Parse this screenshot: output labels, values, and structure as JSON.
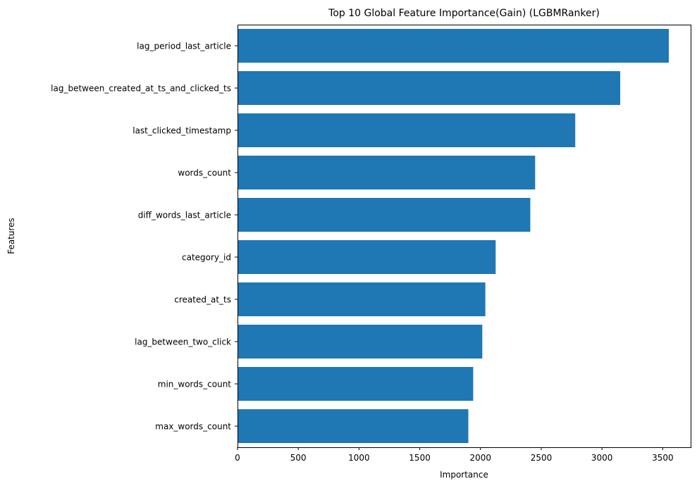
{
  "chart_data": {
    "type": "bar",
    "orientation": "horizontal",
    "title": "Top 10 Global Feature Importance(Gain) (LGBMRanker)",
    "xlabel": "Importance",
    "ylabel": "Features",
    "categories": [
      "lag_period_last_article",
      "lag_between_created_at_ts_and_clicked_ts",
      "last_clicked_timestamp",
      "words_count",
      "diff_words_last_article",
      "category_id",
      "created_at_ts",
      "lag_between_two_click",
      "min_words_count",
      "max_words_count"
    ],
    "values": [
      3550,
      3150,
      2780,
      2450,
      2410,
      2125,
      2040,
      2015,
      1940,
      1900
    ],
    "xlim": [
      0,
      3730
    ],
    "xticks": [
      0,
      500,
      1000,
      1500,
      2000,
      2500,
      3000,
      3500
    ],
    "grid": false,
    "legend": "none",
    "colors": {
      "bar": "#1f77b4",
      "axis": "#000000",
      "background": "#ffffff"
    }
  }
}
